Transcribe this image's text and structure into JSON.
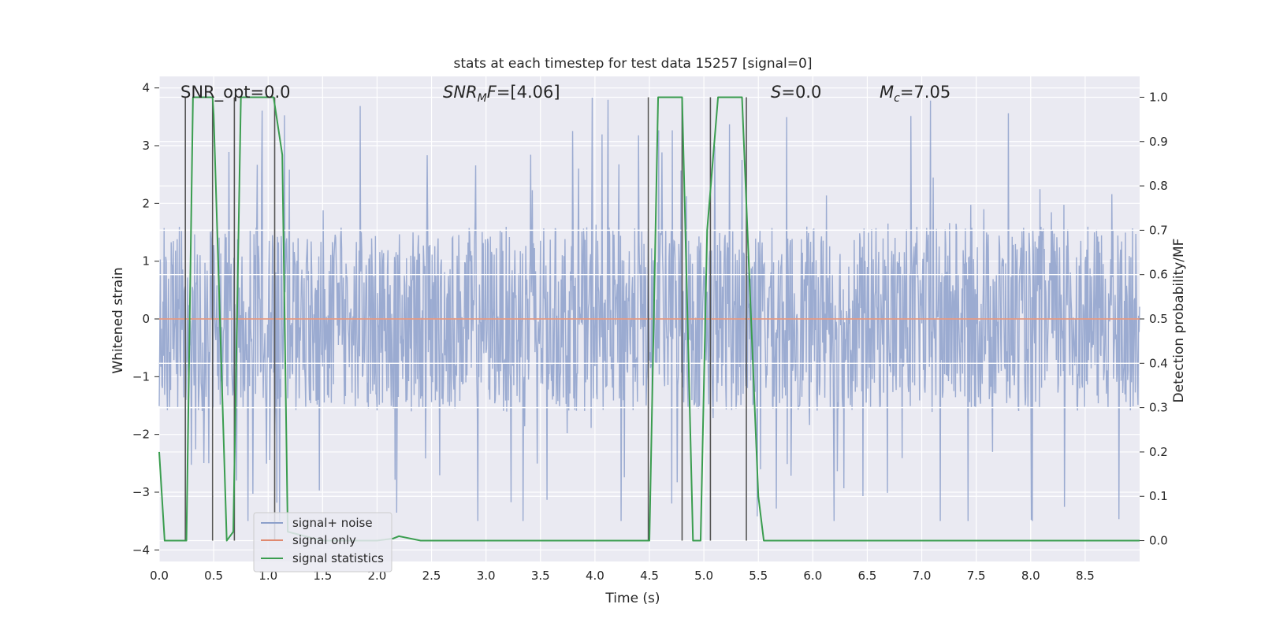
{
  "chart_data": {
    "type": "line",
    "title": "stats at each timestep for test data 15257 [signal=0]",
    "xlabel": "Time (s)",
    "ylabel": "Whitened strain",
    "y2label": "Detection probability/MF",
    "xlim": [
      0,
      9
    ],
    "ylim": [
      -4.2,
      4.2
    ],
    "y2lim": [
      -0.047,
      1.047
    ],
    "grid": true,
    "legend_position": "lower-left",
    "x_ticks": [
      "0.0",
      "0.5",
      "1.0",
      "1.5",
      "2.0",
      "2.5",
      "3.0",
      "3.5",
      "4.0",
      "4.5",
      "5.0",
      "5.5",
      "6.0",
      "6.5",
      "7.0",
      "7.5",
      "8.0",
      "8.5"
    ],
    "y_ticks": [
      "4",
      "3",
      "2",
      "1",
      "0",
      "−1",
      "−2",
      "−3",
      "−4"
    ],
    "y2_ticks": [
      "1.0",
      "0.9",
      "0.8",
      "0.7",
      "0.6",
      "0.5",
      "0.4",
      "0.3",
      "0.2",
      "0.1",
      "0.0"
    ],
    "annotations": [
      {
        "id": "snr-opt",
        "text": "SNR_opt=0.0"
      },
      {
        "id": "snr-mf",
        "text": "SNR_MF=[4.06]"
      },
      {
        "id": "s-stat",
        "text": "S=0.0"
      },
      {
        "id": "mc",
        "text": "M_c=7.05"
      }
    ],
    "series": [
      {
        "name": "signal+ noise",
        "color": "#8da0cb",
        "axis": "left",
        "style": "noise band",
        "sample_rate": 200,
        "band": [
          -1.6,
          1.6
        ],
        "spike_range": [
          -3.5,
          3.9
        ]
      },
      {
        "name": "signal only",
        "color": "#e0896f",
        "axis": "left",
        "x": [
          0,
          9
        ],
        "y": [
          0,
          0
        ]
      },
      {
        "name": "signal statistics",
        "color": "#3a9d4f",
        "axis": "right",
        "x": [
          0.0,
          0.05,
          0.25,
          0.31,
          0.49,
          0.5,
          0.62,
          0.68,
          0.75,
          1.05,
          1.13,
          1.18,
          1.5,
          2.0,
          2.15,
          2.2,
          2.4,
          4.5,
          4.58,
          4.8,
          4.9,
          4.97,
          5.03,
          5.13,
          5.35,
          5.5,
          5.55,
          6.0,
          9.0
        ],
        "y": [
          0.2,
          0.0,
          0.0,
          1.0,
          1.0,
          0.96,
          0.0,
          0.02,
          1.0,
          1.0,
          0.87,
          0.02,
          0.0,
          0.0,
          0.005,
          0.01,
          0.0,
          0.0,
          1.0,
          1.0,
          0.0,
          0.0,
          0.7,
          1.0,
          1.0,
          0.1,
          0.0,
          0.0,
          0.0
        ]
      }
    ],
    "vlines": [
      0.24,
      0.49,
      0.69,
      1.06,
      4.49,
      4.8,
      5.06,
      5.39
    ]
  },
  "legend": {
    "items": [
      "signal+ noise",
      "signal only",
      "signal statistics"
    ]
  }
}
